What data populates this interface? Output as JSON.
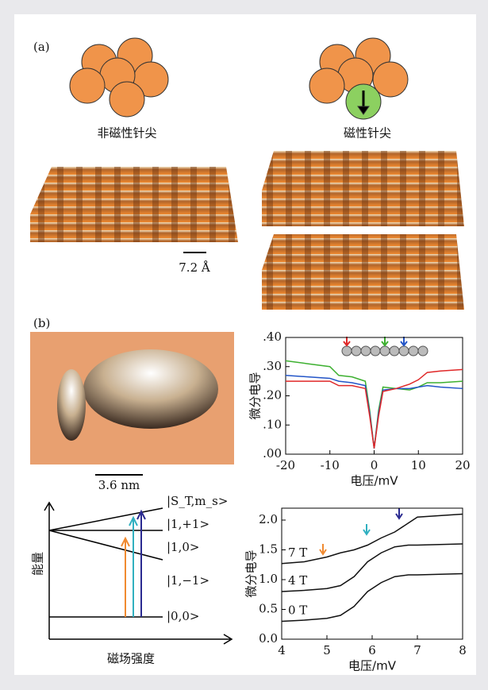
{
  "labels": {
    "panel_a": "(a)",
    "nonmagnetic_tip": "非磁性针尖",
    "magnetic_tip": "磁性针尖",
    "scale_a": "7.2 Å",
    "panel_b": "(b)",
    "scale_b": "3.6 nm"
  },
  "energy_diagram": {
    "state_header": "|S_T,m_s>",
    "levels": [
      "|1,+1>",
      "|1,0>",
      "|1,−1>",
      "|0,0>"
    ],
    "y_label": "能量",
    "x_label": "磁场强度"
  },
  "chart_data": [
    {
      "type": "line",
      "y_label": "微分电导",
      "x_label": "电压/mV",
      "x": [
        -20,
        -15,
        -10,
        -8,
        -5,
        -2,
        -1,
        0,
        1,
        2,
        5,
        8,
        10,
        12,
        15,
        20
      ],
      "series": [
        {
          "color": "#3db030",
          "values": [
            0.32,
            0.31,
            0.3,
            0.27,
            0.265,
            0.25,
            0.15,
            0.02,
            0.15,
            0.23,
            0.225,
            0.22,
            0.23,
            0.245,
            0.245,
            0.25
          ]
        },
        {
          "color": "#2255c8",
          "values": [
            0.27,
            0.265,
            0.26,
            0.25,
            0.245,
            0.235,
            0.14,
            0.02,
            0.14,
            0.22,
            0.225,
            0.225,
            0.23,
            0.235,
            0.23,
            0.225
          ]
        },
        {
          "color": "#e02828",
          "values": [
            0.25,
            0.25,
            0.25,
            0.235,
            0.235,
            0.225,
            0.13,
            0.02,
            0.13,
            0.215,
            0.225,
            0.24,
            0.255,
            0.28,
            0.285,
            0.29
          ]
        }
      ],
      "xlim": [
        -20,
        20
      ],
      "xticks": [
        -20,
        -10,
        0,
        10,
        20
      ],
      "ylim": [
        0,
        0.4
      ],
      "yticks": [
        {
          "value": 0,
          "label": ".00"
        },
        {
          "value": 0.1,
          "label": ".10"
        },
        {
          "value": 0.2,
          "label": ".20"
        },
        {
          "value": 0.3,
          "label": ".30"
        },
        {
          "value": 0.4,
          "label": ".40"
        }
      ]
    },
    {
      "type": "line",
      "y_label": "微分电导",
      "x_label": "电压/mV",
      "x": [
        4,
        4.5,
        5,
        5.3,
        5.6,
        5.9,
        6.2,
        6.5,
        6.8,
        7,
        8
      ],
      "series": [
        {
          "name": "7 T",
          "color": "#111111",
          "values": [
            1.27,
            1.3,
            1.38,
            1.45,
            1.5,
            1.58,
            1.7,
            1.8,
            1.95,
            2.05,
            2.1
          ]
        },
        {
          "name": "4 T",
          "color": "#111111",
          "values": [
            0.8,
            0.82,
            0.85,
            0.9,
            1.05,
            1.3,
            1.45,
            1.55,
            1.58,
            1.58,
            1.6
          ]
        },
        {
          "name": "0 T",
          "color": "#111111",
          "values": [
            0.3,
            0.32,
            0.35,
            0.4,
            0.55,
            0.8,
            0.95,
            1.05,
            1.08,
            1.08,
            1.1
          ]
        }
      ],
      "xlim": [
        4,
        8
      ],
      "xticks": [
        4,
        5,
        6,
        7,
        8
      ],
      "ylim": [
        0,
        2.2
      ],
      "yticks": [
        {
          "value": 0,
          "label": "0.0"
        },
        0.5,
        {
          "value": 1,
          "label": "1.0"
        },
        1.5,
        {
          "value": 2,
          "label": "2.0"
        }
      ]
    }
  ]
}
